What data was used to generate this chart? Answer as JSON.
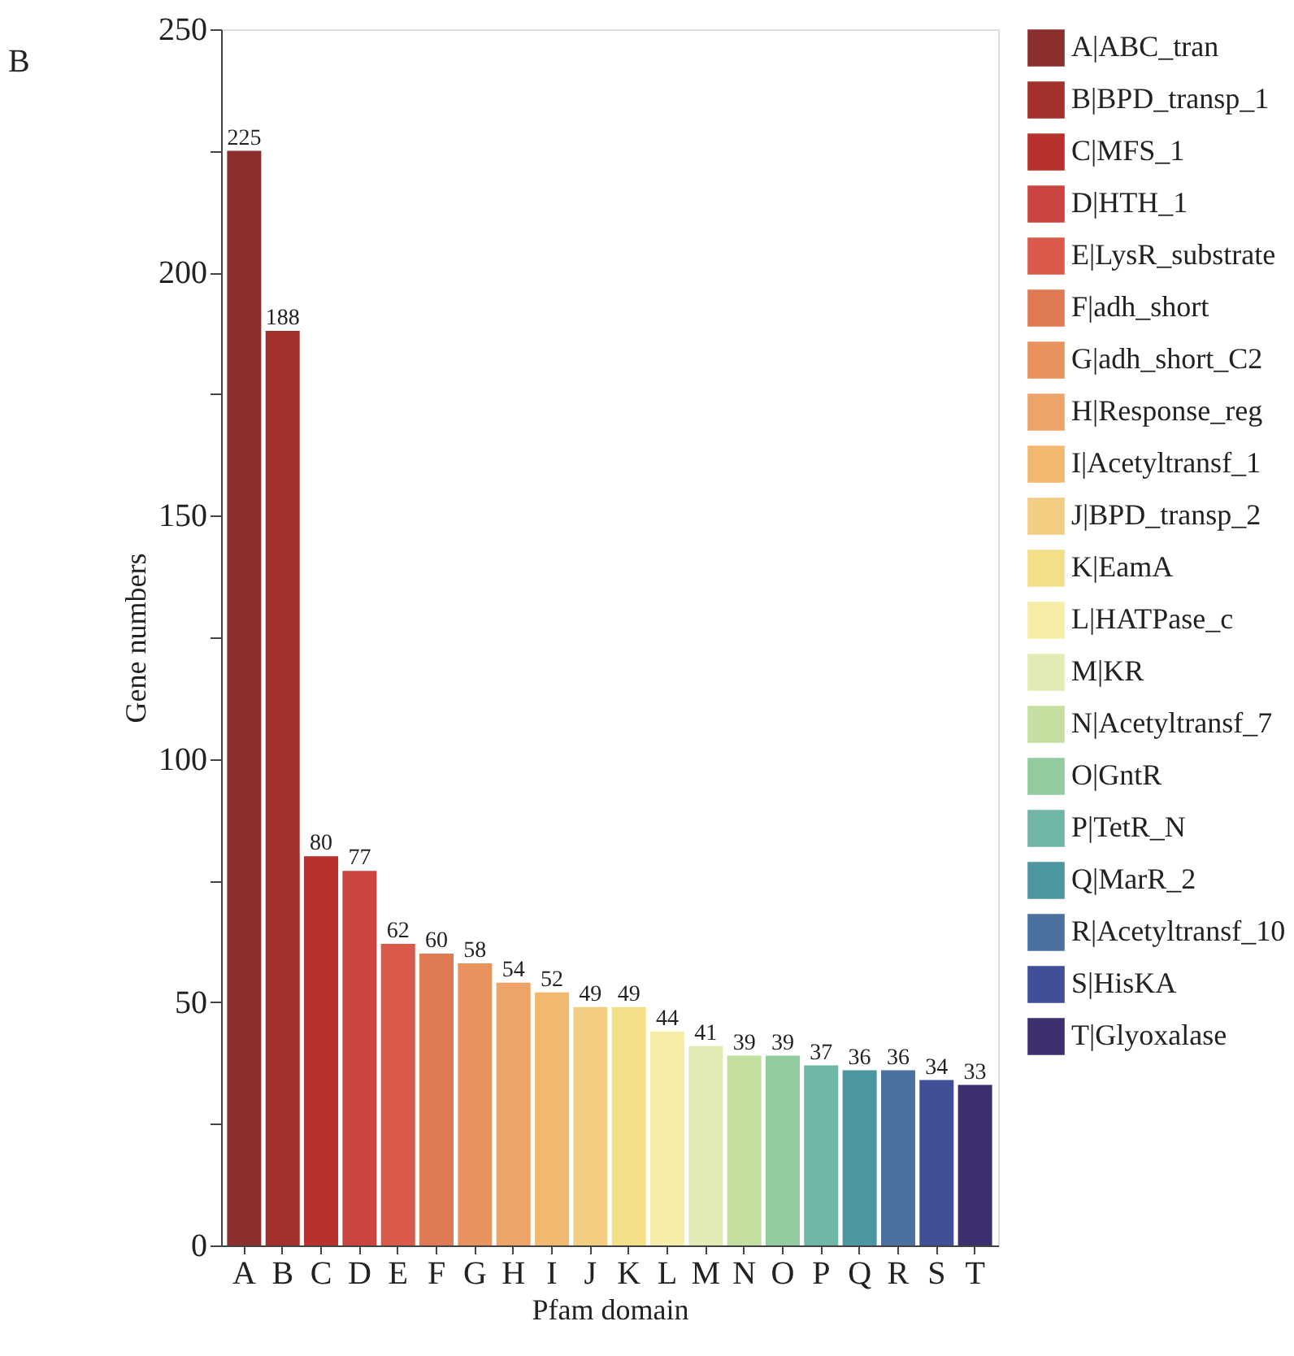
{
  "chart_data": {
    "type": "bar",
    "title": "B",
    "xlabel": "Pfam domain",
    "ylabel": "Gene numbers",
    "categories": [
      "A",
      "B",
      "C",
      "D",
      "E",
      "F",
      "G",
      "H",
      "I",
      "J",
      "K",
      "L",
      "M",
      "N",
      "O",
      "P",
      "Q",
      "R",
      "S",
      "T"
    ],
    "series": [
      {
        "name": "A|ABC_tran",
        "color": "#8b2e2e",
        "values": [
          225,
          null,
          null,
          null,
          null,
          null,
          null,
          null,
          null,
          null,
          null,
          null,
          null,
          null,
          null,
          null,
          null,
          null,
          null,
          null
        ]
      },
      {
        "name": "B|BPD_transp_1",
        "color": "#a3302c",
        "values": [
          null,
          188,
          null,
          null,
          null,
          null,
          null,
          null,
          null,
          null,
          null,
          null,
          null,
          null,
          null,
          null,
          null,
          null,
          null,
          null
        ]
      },
      {
        "name": "C|MFS_1",
        "color": "#b8312d",
        "values": [
          null,
          null,
          80,
          null,
          null,
          null,
          null,
          null,
          null,
          null,
          null,
          null,
          null,
          null,
          null,
          null,
          null,
          null,
          null,
          null
        ]
      },
      {
        "name": "D|HTH_1",
        "color": "#cc4440",
        "values": [
          null,
          null,
          null,
          77,
          null,
          null,
          null,
          null,
          null,
          null,
          null,
          null,
          null,
          null,
          null,
          null,
          null,
          null,
          null,
          null
        ]
      },
      {
        "name": "E|LysR_substrate",
        "color": "#d95a4a",
        "values": [
          null,
          null,
          null,
          null,
          62,
          null,
          null,
          null,
          null,
          null,
          null,
          null,
          null,
          null,
          null,
          null,
          null,
          null,
          null,
          null
        ]
      },
      {
        "name": "F|adh_short",
        "color": "#e07a55",
        "values": [
          null,
          null,
          null,
          null,
          null,
          60,
          null,
          null,
          null,
          null,
          null,
          null,
          null,
          null,
          null,
          null,
          null,
          null,
          null,
          null
        ]
      },
      {
        "name": "G|adh_short_C2",
        "color": "#e8935e",
        "values": [
          null,
          null,
          null,
          null,
          null,
          null,
          58,
          null,
          null,
          null,
          null,
          null,
          null,
          null,
          null,
          null,
          null,
          null,
          null,
          null
        ]
      },
      {
        "name": "H|Response_reg",
        "color": "#eda468",
        "values": [
          null,
          null,
          null,
          null,
          null,
          null,
          null,
          54,
          null,
          null,
          null,
          null,
          null,
          null,
          null,
          null,
          null,
          null,
          null,
          null
        ]
      },
      {
        "name": "I|Acetyltransf_1",
        "color": "#f3b870",
        "values": [
          null,
          null,
          null,
          null,
          null,
          null,
          null,
          null,
          52,
          null,
          null,
          null,
          null,
          null,
          null,
          null,
          null,
          null,
          null,
          null
        ]
      },
      {
        "name": "J|BPD_transp_2",
        "color": "#f2cd82",
        "values": [
          null,
          null,
          null,
          null,
          null,
          null,
          null,
          null,
          null,
          49,
          null,
          null,
          null,
          null,
          null,
          null,
          null,
          null,
          null,
          null
        ]
      },
      {
        "name": "K|EamA",
        "color": "#f2df88",
        "values": [
          null,
          null,
          null,
          null,
          null,
          null,
          null,
          null,
          null,
          null,
          49,
          null,
          null,
          null,
          null,
          null,
          null,
          null,
          null,
          null
        ]
      },
      {
        "name": "L|HATPase_c",
        "color": "#f6eea8",
        "values": [
          null,
          null,
          null,
          null,
          null,
          null,
          null,
          null,
          null,
          null,
          null,
          44,
          null,
          null,
          null,
          null,
          null,
          null,
          null,
          null
        ]
      },
      {
        "name": "M|KR",
        "color": "#e3ebb4",
        "values": [
          null,
          null,
          null,
          null,
          null,
          null,
          null,
          null,
          null,
          null,
          null,
          null,
          41,
          null,
          null,
          null,
          null,
          null,
          null,
          null
        ]
      },
      {
        "name": "N|Acetyltransf_7",
        "color": "#c4dfa0",
        "values": [
          null,
          null,
          null,
          null,
          null,
          null,
          null,
          null,
          null,
          null,
          null,
          null,
          null,
          39,
          null,
          null,
          null,
          null,
          null,
          null
        ]
      },
      {
        "name": "O|GntR",
        "color": "#93cba0",
        "values": [
          null,
          null,
          null,
          null,
          null,
          null,
          null,
          null,
          null,
          null,
          null,
          null,
          null,
          null,
          39,
          null,
          null,
          null,
          null,
          null
        ]
      },
      {
        "name": "P|TetR_N",
        "color": "#70b5a5",
        "values": [
          null,
          null,
          null,
          null,
          null,
          null,
          null,
          null,
          null,
          null,
          null,
          null,
          null,
          null,
          null,
          37,
          null,
          null,
          null,
          null
        ]
      },
      {
        "name": "Q|MarR_2",
        "color": "#4b96a0",
        "values": [
          null,
          null,
          null,
          null,
          null,
          null,
          null,
          null,
          null,
          null,
          null,
          null,
          null,
          null,
          null,
          null,
          36,
          null,
          null,
          null
        ]
      },
      {
        "name": "R|Acetyltransf_10",
        "color": "#4a71a0",
        "values": [
          null,
          null,
          null,
          null,
          null,
          null,
          null,
          null,
          null,
          null,
          null,
          null,
          null,
          null,
          null,
          null,
          null,
          36,
          null,
          null
        ]
      },
      {
        "name": "S|HisKA",
        "color": "#404f98",
        "values": [
          null,
          null,
          null,
          null,
          null,
          null,
          null,
          null,
          null,
          null,
          null,
          null,
          null,
          null,
          null,
          null,
          null,
          null,
          34,
          null
        ]
      },
      {
        "name": "T|Glyoxalase",
        "color": "#3e2f6e",
        "values": [
          null,
          null,
          null,
          null,
          null,
          null,
          null,
          null,
          null,
          null,
          null,
          null,
          null,
          null,
          null,
          null,
          null,
          null,
          null,
          33
        ]
      }
    ],
    "ylim": [
      0,
      250
    ],
    "yticks": [
      0,
      {
        "value": 25,
        "label": null
      },
      50,
      {
        "value": 75,
        "label": null
      },
      100,
      {
        "value": 125,
        "label": null
      },
      150,
      {
        "value": 175,
        "label": null
      },
      200,
      {
        "value": 225,
        "label": null
      },
      250
    ],
    "data_labels": true,
    "legend": "right",
    "grid": false
  }
}
